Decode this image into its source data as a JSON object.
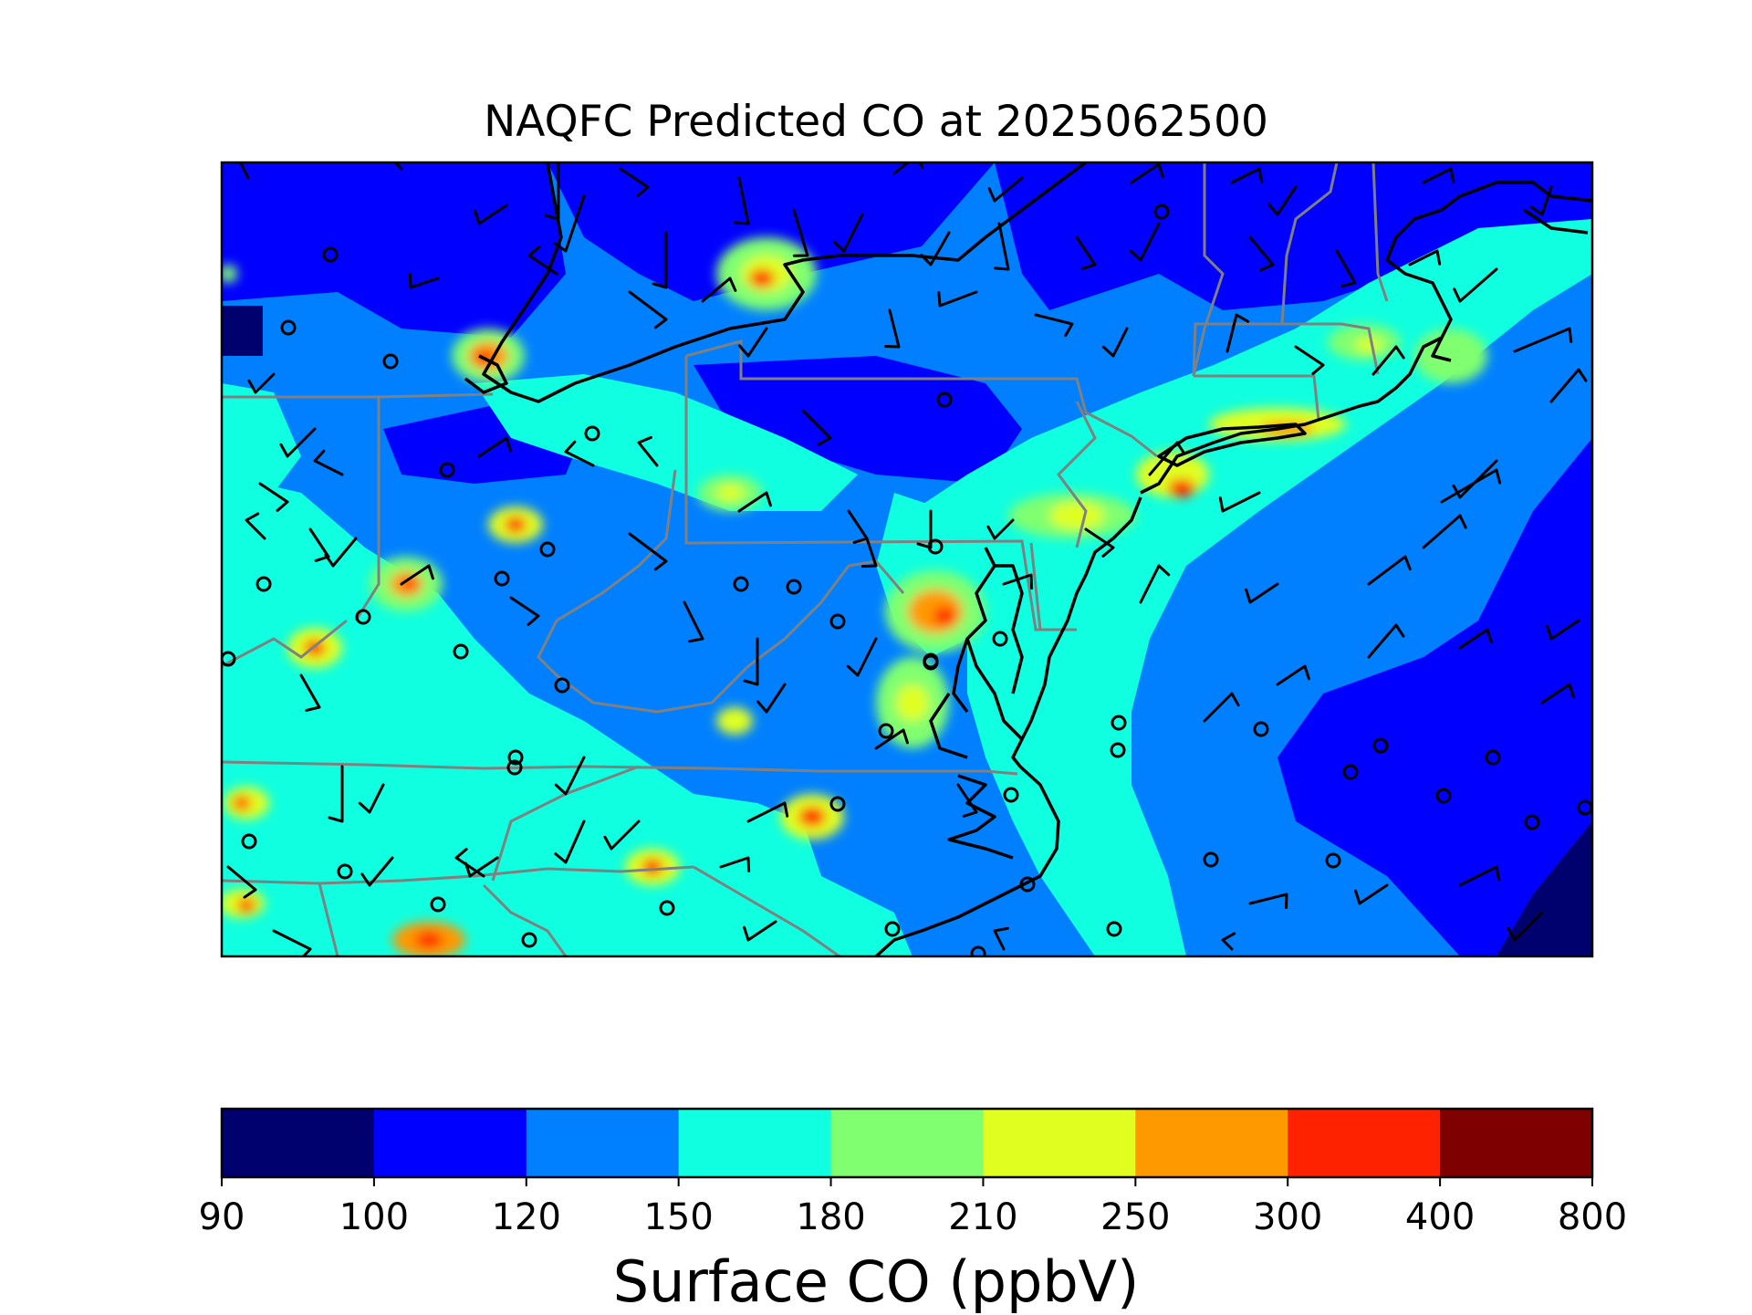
{
  "title": "NAQFC Predicted CO at 2025062500",
  "colorbar": {
    "label": "Surface CO (ppbV)",
    "ticks": [
      "90",
      "100",
      "120",
      "150",
      "180",
      "210",
      "250",
      "300",
      "400",
      "800"
    ],
    "colors": [
      "#00006e",
      "#0000ff",
      "#0080ff",
      "#10ffe0",
      "#80ff70",
      "#e0ff20",
      "#ff9900",
      "#ff2200",
      "#7f0000"
    ]
  },
  "map": {
    "region": "US Mid-Atlantic and Northeast",
    "colors": {
      "state_border": "#808080",
      "coastline": "#000000",
      "wind_barb": "#000000"
    },
    "icons": [
      "wind-barb-icon",
      "calm-wind-circle-icon"
    ]
  }
}
